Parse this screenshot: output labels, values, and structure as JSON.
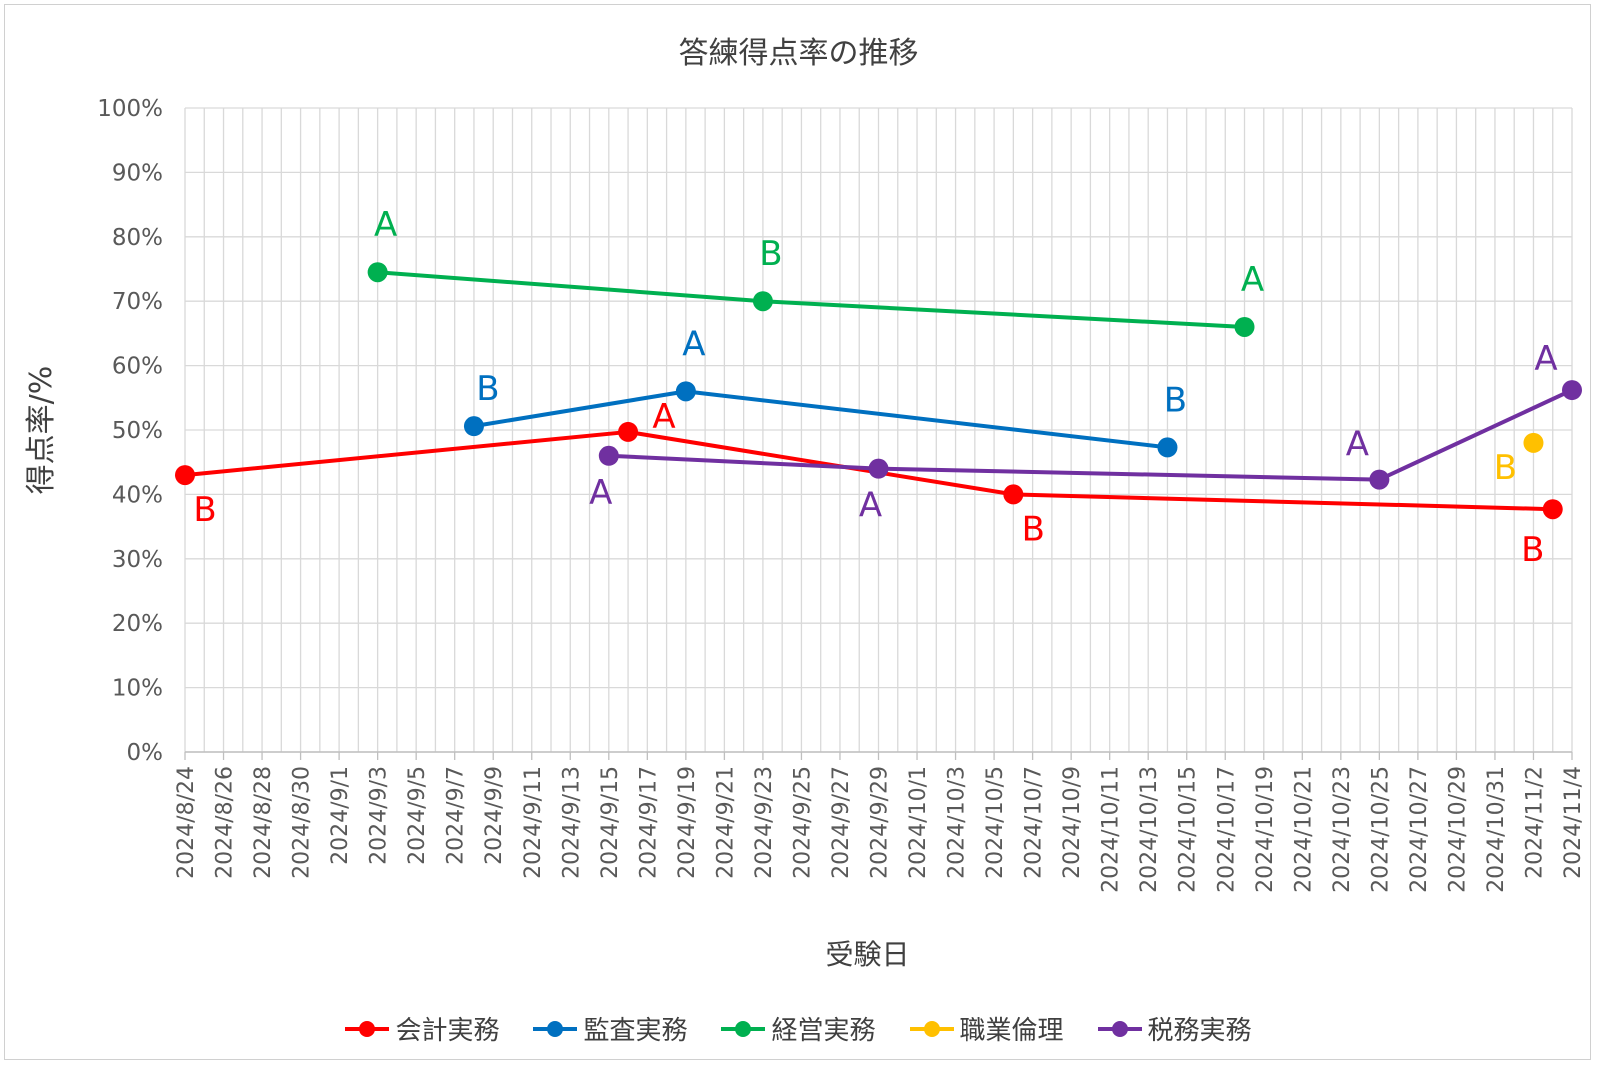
{
  "chart_data": {
    "type": "line",
    "title": "答練得点率の推移",
    "xlabel": "受験日",
    "ylabel": "得点率/%",
    "x_tick_labels": [
      "2024/8/24",
      "2024/8/26",
      "2024/8/28",
      "2024/8/30",
      "2024/9/1",
      "2024/9/3",
      "2024/9/5",
      "2024/9/7",
      "2024/9/9",
      "2024/9/11",
      "2024/9/13",
      "2024/9/15",
      "2024/9/17",
      "2024/9/19",
      "2024/9/21",
      "2024/9/23",
      "2024/9/25",
      "2024/9/27",
      "2024/9/29",
      "2024/10/1",
      "2024/10/3",
      "2024/10/5",
      "2024/10/7",
      "2024/10/9",
      "2024/10/11",
      "2024/10/13",
      "2024/10/15",
      "2024/10/17",
      "2024/10/19",
      "2024/10/21",
      "2024/10/23",
      "2024/10/25",
      "2024/10/27",
      "2024/10/29",
      "2024/10/31",
      "2024/11/2",
      "2024/11/4"
    ],
    "y_tick_labels": [
      "0%",
      "10%",
      "20%",
      "30%",
      "40%",
      "50%",
      "60%",
      "70%",
      "80%",
      "90%",
      "100%"
    ],
    "xlim": [
      "2024-08-24",
      "2024-11-04"
    ],
    "ylim": [
      0,
      1
    ],
    "grid": true,
    "legend_position": "bottom",
    "series": [
      {
        "name": "会計実務",
        "color": "#ff0000",
        "label_pos": "below",
        "points": [
          {
            "x": "2024-08-24",
            "y": 0.43,
            "label": "B"
          },
          {
            "x": "2024-09-16",
            "y": 0.497,
            "label": "A"
          },
          {
            "x": "2024-10-06",
            "y": 0.4,
            "label": "B"
          },
          {
            "x": "2024-11-03",
            "y": 0.377,
            "label": "B"
          }
        ]
      },
      {
        "name": "監査実務",
        "color": "#0070c0",
        "label_pos": "above",
        "points": [
          {
            "x": "2024-09-08",
            "y": 0.506,
            "label": "B"
          },
          {
            "x": "2024-09-19",
            "y": 0.56,
            "label": "A"
          },
          {
            "x": "2024-10-14",
            "y": 0.473,
            "label": "B"
          }
        ]
      },
      {
        "name": "経営実務",
        "color": "#00b050",
        "label_pos": "above",
        "points": [
          {
            "x": "2024-09-03",
            "y": 0.745,
            "label": "A"
          },
          {
            "x": "2024-09-23",
            "y": 0.7,
            "label": "B"
          },
          {
            "x": "2024-10-18",
            "y": 0.66,
            "label": "A"
          }
        ]
      },
      {
        "name": "職業倫理",
        "color": "#ffc000",
        "label_pos": "left",
        "points": [
          {
            "x": "2024-11-02",
            "y": 0.48,
            "label": "B"
          }
        ]
      },
      {
        "name": "税務実務",
        "color": "#7030a0",
        "label_pos": "mixed",
        "points": [
          {
            "x": "2024-09-15",
            "y": 0.46,
            "label": "A"
          },
          {
            "x": "2024-09-29",
            "y": 0.44,
            "label": "A"
          },
          {
            "x": "2024-10-25",
            "y": 0.423,
            "label": "A"
          },
          {
            "x": "2024-11-04",
            "y": 0.562,
            "label": "A"
          }
        ]
      }
    ]
  }
}
